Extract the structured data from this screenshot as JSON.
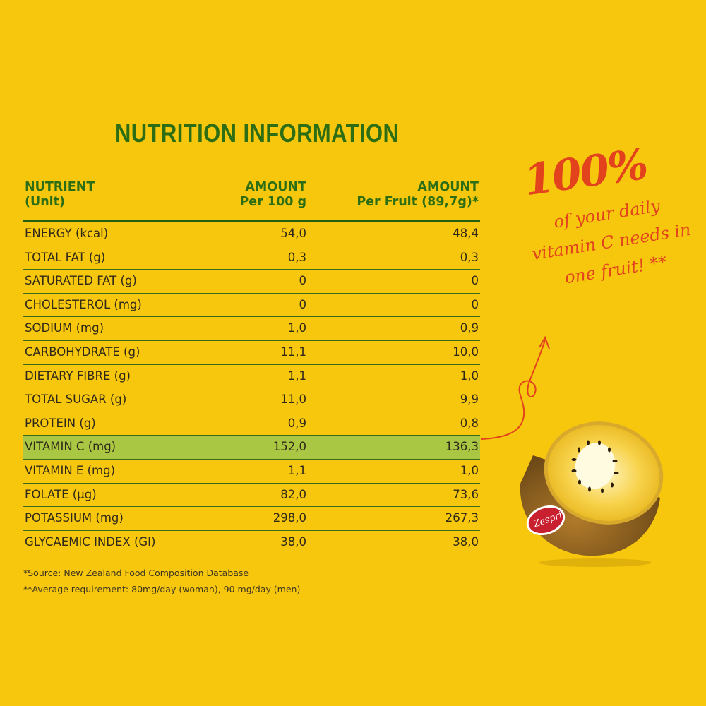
{
  "title": "NUTRITION INFORMATION",
  "table": {
    "headers": {
      "nutrient": [
        "NUTRIENT",
        "(Unit)"
      ],
      "per100": [
        "AMOUNT",
        "Per 100 g"
      ],
      "perFruit": [
        "AMOUNT",
        "Per Fruit (89,7g)*"
      ]
    },
    "rows": [
      {
        "name": "ENERGY (kcal)",
        "per100": "54,0",
        "perFruit": "48,4"
      },
      {
        "name": "TOTAL FAT (g)",
        "per100": "0,3",
        "perFruit": "0,3"
      },
      {
        "name": "SATURATED FAT (g)",
        "per100": "0",
        "perFruit": "0"
      },
      {
        "name": "CHOLESTEROL (mg)",
        "per100": "0",
        "perFruit": "0"
      },
      {
        "name": "SODIUM (mg)",
        "per100": "1,0",
        "perFruit": "0,9"
      },
      {
        "name": "CARBOHYDRATE (g)",
        "per100": "11,1",
        "perFruit": "10,0"
      },
      {
        "name": "DIETARY FIBRE (g)",
        "per100": "1,1",
        "perFruit": "1,0"
      },
      {
        "name": "TOTAL SUGAR (g)",
        "per100": "11,0",
        "perFruit": "9,9"
      },
      {
        "name": "PROTEIN (g)",
        "per100": "0,9",
        "perFruit": "0,8"
      },
      {
        "name": "VITAMIN C (mg)",
        "per100": "152,0",
        "perFruit": "136,3"
      },
      {
        "name": "VITAMIN E (mg)",
        "per100": "1,1",
        "perFruit": "1,0"
      },
      {
        "name": "FOLATE (µg)",
        "per100": "82,0",
        "perFruit": "73,6"
      },
      {
        "name": "POTASSIUM (mg)",
        "per100": "298,0",
        "perFruit": "267,3"
      },
      {
        "name": "GLYCAEMIC INDEX (GI)",
        "per100": "38,0",
        "perFruit": "38,0"
      }
    ]
  },
  "notes": [
    "*Source: New Zealand Food Composition Database",
    "**Average requirement: 80mg/day (woman), 90 mg/day (men)"
  ],
  "callout": {
    "big": "100%",
    "lines": [
      "of your daily",
      "vitamin C needs in",
      "one fruit! **"
    ]
  },
  "logo_text": "Zespri",
  "colors": {
    "background": "#f7c70e",
    "heading_green": "#2d6e14",
    "highlight_row": "#a9c742",
    "callout_red": "#e2421c"
  }
}
